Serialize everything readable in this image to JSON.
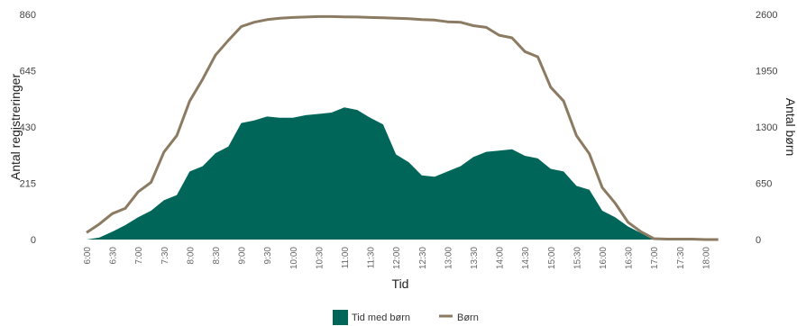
{
  "chart_data": {
    "type": "area",
    "xlabel": "Tid",
    "ylabel_left": "Antal registreringer",
    "ylabel_right": "Antal børn",
    "y_left_ticks": [
      "860",
      "645",
      "430",
      "215",
      "0"
    ],
    "y_right_ticks": [
      "2600",
      "1950",
      "1300",
      "650",
      "0"
    ],
    "ylim_left": [
      0,
      860
    ],
    "ylim_right": [
      0,
      2600
    ],
    "x": [
      "6:00",
      "6:15",
      "6:30",
      "6:45",
      "7:00",
      "7:15",
      "7:30",
      "7:45",
      "8:00",
      "8:15",
      "8:30",
      "8:45",
      "9:00",
      "9:15",
      "9:30",
      "9:45",
      "10:00",
      "10:15",
      "10:30",
      "10:45",
      "11:00",
      "11:15",
      "11:30",
      "11:45",
      "12:00",
      "12:15",
      "12:30",
      "12:45",
      "13:00",
      "13:15",
      "13:30",
      "13:45",
      "14:00",
      "14:15",
      "14:30",
      "14:45",
      "15:00",
      "15:15",
      "15:30",
      "15:45",
      "16:00",
      "16:15",
      "16:30",
      "16:45",
      "17:00",
      "17:15",
      "17:30",
      "17:45",
      "18:00",
      "18:15"
    ],
    "x_tick_labels": [
      "6:00",
      "6:30",
      "7:00",
      "7:30",
      "8:00",
      "8:30",
      "9:00",
      "9:30",
      "10:00",
      "10:30",
      "11:00",
      "11:30",
      "12:00",
      "12:30",
      "13:00",
      "13:30",
      "14:00",
      "14:30",
      "15:00",
      "15:30",
      "16:00",
      "16:30",
      "17:00",
      "17:30",
      "18:00"
    ],
    "series": [
      {
        "name": "Tid med børn",
        "type": "area",
        "axis": "left",
        "color": "#00665a",
        "values": [
          0,
          8,
          30,
          55,
          85,
          110,
          150,
          170,
          260,
          280,
          330,
          355,
          445,
          455,
          470,
          465,
          465,
          475,
          480,
          485,
          505,
          495,
          465,
          440,
          325,
          295,
          245,
          240,
          260,
          280,
          315,
          335,
          340,
          345,
          320,
          310,
          270,
          260,
          205,
          190,
          110,
          85,
          50,
          25,
          5,
          0,
          0,
          0,
          0,
          0
        ]
      },
      {
        "name": "Børn",
        "type": "line",
        "axis": "right",
        "color": "#8c7b63",
        "values": [
          80,
          180,
          300,
          360,
          550,
          660,
          1010,
          1200,
          1600,
          1850,
          2130,
          2300,
          2460,
          2510,
          2540,
          2555,
          2565,
          2570,
          2575,
          2575,
          2572,
          2570,
          2565,
          2560,
          2555,
          2550,
          2540,
          2535,
          2515,
          2510,
          2470,
          2450,
          2360,
          2330,
          2170,
          2110,
          1760,
          1600,
          1200,
          990,
          600,
          420,
          200,
          90,
          10,
          5,
          5,
          5,
          0,
          0
        ]
      }
    ],
    "legend": "bottom-center",
    "grid": false
  }
}
